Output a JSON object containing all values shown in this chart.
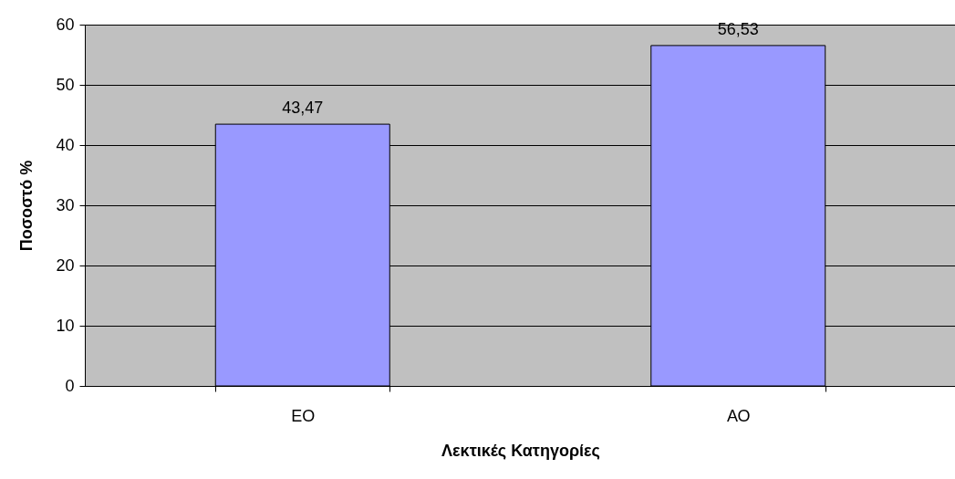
{
  "chart_data": {
    "type": "bar",
    "xlabel": "Λεκτικές Κατηγορίες",
    "ylabel": "Ποσοστό %",
    "categories": [
      "ΕΟ",
      "ΑΟ"
    ],
    "values": [
      43.47,
      56.53
    ],
    "value_labels": [
      "43,47",
      "56,53"
    ],
    "color": "#9999ff",
    "ylim": [
      0,
      60
    ],
    "yticks": [
      0,
      10,
      20,
      30,
      40,
      50,
      60
    ],
    "grid": "y"
  }
}
